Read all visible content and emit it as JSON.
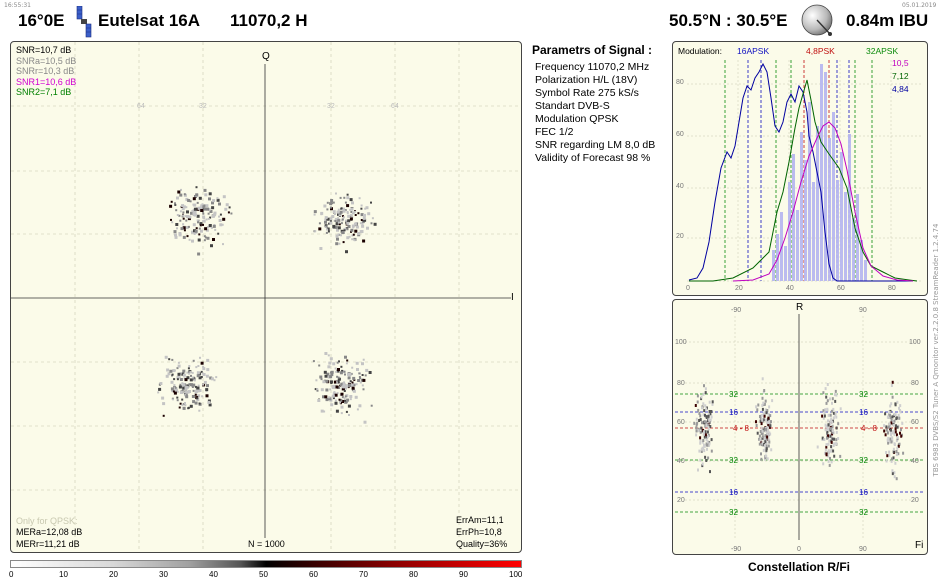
{
  "header": {
    "time": "16:55:31",
    "date": "05.01.2019",
    "satellite_position": "16°0E",
    "satellite_name": "Eutelsat 16A",
    "frequency_polarization": "11070,2  H",
    "location": "50.5°N : 30.5°E",
    "dish": "0.84m  IBU"
  },
  "constellation_iq": {
    "snr": [
      {
        "text": "SNR=10,7 dB",
        "color": "#000000"
      },
      {
        "text": "SNRa=10,5 dB",
        "color": "#888888"
      },
      {
        "text": "SNRr=10,3 dB",
        "color": "#888888"
      },
      {
        "text": "SNR1=10,6 dB",
        "color": "#d000d0"
      },
      {
        "text": "SNR2=7,1 dB",
        "color": "#008000"
      }
    ],
    "axis_q": "Q",
    "axis_i": "I",
    "grid_labels": [
      "64",
      "32",
      "32",
      "64"
    ],
    "only_for_qpsk": "Only for QPSK:",
    "mera": "MERa=12,08 dB",
    "merr": "MERr=11,21 dB",
    "n": "N = 1000",
    "erram": "ErrAm=11,1",
    "errph": "ErrPh=10,8",
    "quality": "Quality=36%"
  },
  "parameters": {
    "title": "Parametrs of Signal :",
    "rows": [
      "Frequency  11070,2 MHz",
      "Polarization   H/L (18V)",
      "Symbol Rate  275 kS/s",
      "Standart  DVB-S",
      "Modulation   QPSK",
      "FEC  1/2",
      "SNR regarding LM  8,0 dB",
      "Validity of Forecast  98 %"
    ]
  },
  "histogram": {
    "modulation_label": "Modulation:",
    "apsk16": "16APSK",
    "psk4_8": "4,8PSK",
    "apsk32": "32APSK",
    "val_magenta": "10,5",
    "val_green": "7,12",
    "val_blue": "4,84",
    "y_ticks": [
      "80",
      "60",
      "40",
      "20"
    ],
    "x_ticks": [
      "0",
      "20",
      "40",
      "60",
      "80"
    ]
  },
  "rfi": {
    "axis_r": "R",
    "axis_fi": "Fi",
    "top_ticks": [
      "-90",
      "90"
    ],
    "bottom_ticks": [
      "-90",
      "0",
      "90"
    ],
    "y_ticks": [
      "100",
      "80",
      "60",
      "40",
      "20"
    ],
    "label_32": "32",
    "label_16": "16",
    "label_48": "4 - 8"
  },
  "vertical_label": "TBS 6983 DVBS/S2 Tuner A     Qmonitor  ver.2.2.0.8     StreamReader 1.2.4.74",
  "colorbar": {
    "ticks": [
      "0",
      "10",
      "20",
      "30",
      "40",
      "50",
      "60",
      "70",
      "80",
      "90",
      "100"
    ],
    "caption": "Constellation  R/Fi"
  }
}
